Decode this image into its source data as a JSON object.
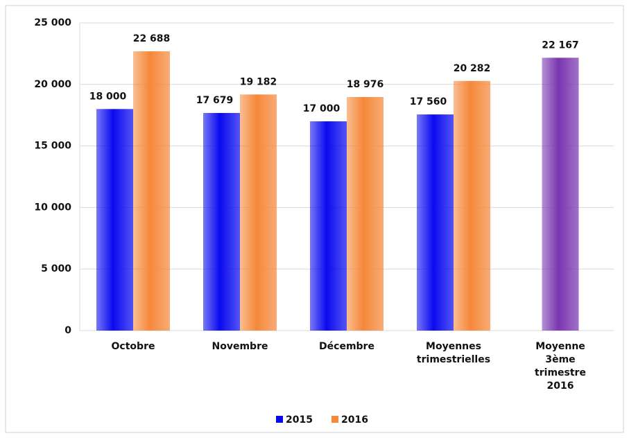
{
  "chart_data": {
    "type": "bar",
    "categories": [
      "Octobre",
      "Novembre",
      "Décembre",
      "Moyennes\ntrimestrielles",
      "Moyenne\n3ème\ntrimestre\n2016"
    ],
    "series": [
      {
        "name": "2015",
        "color": "#0a0af0",
        "values": [
          18000,
          17679,
          17000,
          17560,
          null
        ],
        "value_labels": [
          "18 000",
          "17 679",
          "17 000",
          "17 560",
          null
        ]
      },
      {
        "name": "2016",
        "color": "#f5883a",
        "values": [
          22688,
          19182,
          18976,
          20282,
          null
        ],
        "value_labels": [
          "22 688",
          "19 182",
          "18 976",
          "20 282",
          null
        ]
      },
      {
        "color": "#7a35b0",
        "values": [
          null,
          null,
          null,
          null,
          22167
        ],
        "value_labels": [
          null,
          null,
          null,
          null,
          "22 167"
        ]
      }
    ],
    "ylim": [
      0,
      25000
    ],
    "yticks": [
      0,
      {
        "value": 5000,
        "label": "5 000"
      },
      {
        "value": 10000,
        "label": "10 000"
      },
      {
        "value": 15000,
        "label": "15 000"
      },
      {
        "value": 20000,
        "label": "20 000"
      },
      {
        "value": 25000,
        "label": "25 000"
      }
    ],
    "grid": true,
    "legend": "bottom"
  }
}
